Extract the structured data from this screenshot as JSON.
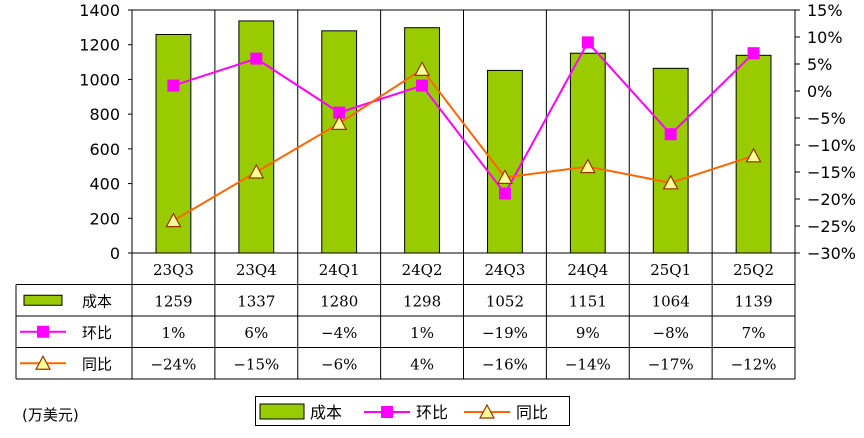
{
  "chart_data": {
    "type": "bar",
    "categories": [
      "23Q3",
      "23Q4",
      "24Q1",
      "24Q2",
      "24Q3",
      "24Q4",
      "25Q1",
      "25Q2"
    ],
    "series": [
      {
        "name": "成本",
        "type": "bar",
        "axis": "left",
        "color": "#99CC00",
        "values": [
          1259,
          1337,
          1280,
          1298,
          1052,
          1151,
          1064,
          1139
        ],
        "labels": [
          "1259",
          "1337",
          "1280",
          "1298",
          "1052",
          "1151",
          "1064",
          "1139"
        ]
      },
      {
        "name": "环比",
        "type": "line",
        "axis": "right",
        "color": "#FF00FF",
        "marker": "square",
        "values": [
          1,
          6,
          -4,
          1,
          -19,
          9,
          -8,
          7
        ],
        "labels": [
          "1%",
          "6%",
          "-4%",
          "1%",
          "-19%",
          "9%",
          "-8%",
          "7%"
        ]
      },
      {
        "name": "同比",
        "type": "line",
        "axis": "right",
        "color": "#FF6600",
        "marker": "triangle",
        "values": [
          -24,
          -15,
          -6,
          4,
          -16,
          -14,
          -17,
          -12
        ],
        "labels": [
          "-24%",
          "-15%",
          "-6%",
          "4%",
          "-16%",
          "-14%",
          "-17%",
          "-12%"
        ]
      }
    ],
    "ylim_left": [
      0,
      1400
    ],
    "yticks_left": [
      "0",
      "200",
      "400",
      "600",
      "800",
      "1000",
      "1200",
      "1400"
    ],
    "ylim_right": [
      -30,
      15
    ],
    "yticks_right": [
      "-30%",
      "-25%",
      "-20%",
      "-15%",
      "-10%",
      "-5%",
      "0%",
      "5%",
      "10%",
      "15%"
    ],
    "grid": "vertical",
    "legend_position": "bottom",
    "unit_label": "(万美元)"
  }
}
